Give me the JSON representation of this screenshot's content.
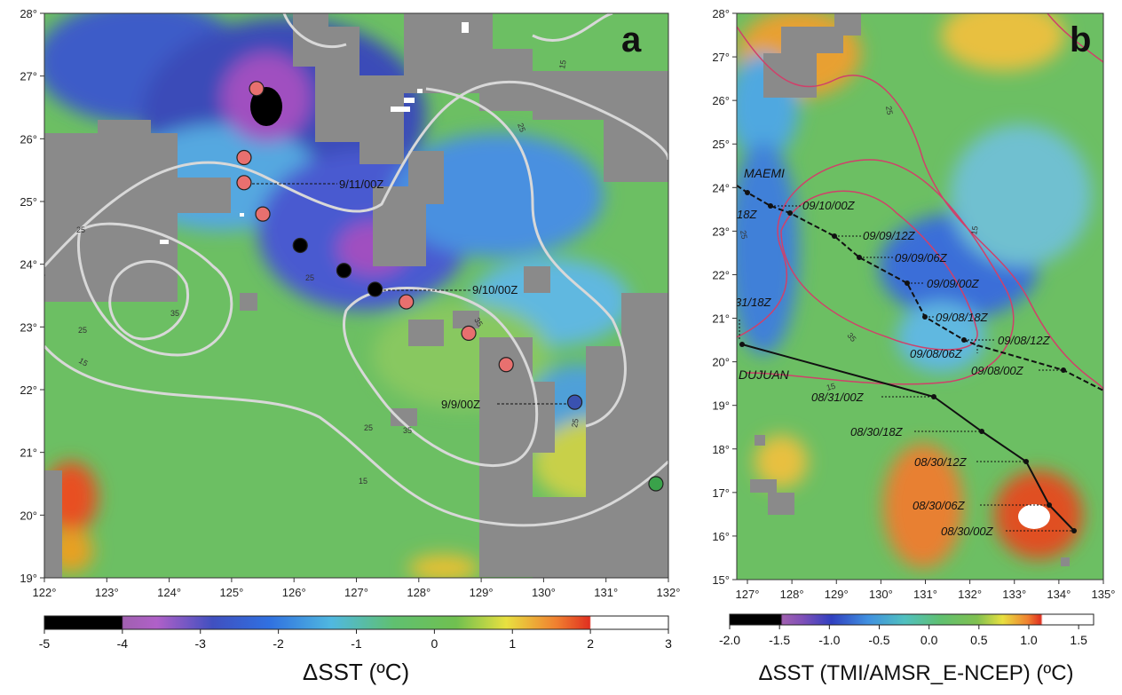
{
  "panel_a": {
    "letter": "a",
    "lat_labels": [
      "28°",
      "27°",
      "26°",
      "25°",
      "24°",
      "23°",
      "22°",
      "21°",
      "20°",
      "19°"
    ],
    "lon_labels": [
      "122°",
      "123°",
      "124°",
      "125°",
      "126°",
      "127°",
      "128°",
      "129°",
      "130°",
      "131°",
      "132°"
    ],
    "contour_labels": [
      "15",
      "25",
      "35"
    ],
    "annotations": [
      "9/11/00Z",
      "9/10/00Z",
      "9/9/00Z"
    ],
    "colorbar": {
      "ticks": [
        "-5",
        "-4",
        "-3",
        "-2",
        "-1",
        "0",
        "1",
        "2",
        "3"
      ],
      "title": "ΔSST (ºC)"
    },
    "markers": [
      {
        "lon": 125.4,
        "lat": 26.8,
        "color": "#e8706f"
      },
      {
        "lon": 125.2,
        "lat": 25.7,
        "color": "#e8706f"
      },
      {
        "lon": 125.2,
        "lat": 25.3,
        "color": "#e8706f"
      },
      {
        "lon": 125.5,
        "lat": 24.8,
        "color": "#e8706f"
      },
      {
        "lon": 126.1,
        "lat": 24.3,
        "color": "#000000"
      },
      {
        "lon": 126.8,
        "lat": 23.9,
        "color": "#000000"
      },
      {
        "lon": 127.3,
        "lat": 23.6,
        "color": "#000000"
      },
      {
        "lon": 127.8,
        "lat": 23.4,
        "color": "#e8706f"
      },
      {
        "lon": 128.8,
        "lat": 22.9,
        "color": "#e8706f"
      },
      {
        "lon": 129.4,
        "lat": 22.4,
        "color": "#e8706f"
      },
      {
        "lon": 130.5,
        "lat": 21.8,
        "color": "#3a52b0"
      },
      {
        "lon": 131.8,
        "lat": 20.5,
        "color": "#3aa24a"
      }
    ]
  },
  "panel_b": {
    "letter": "b",
    "lat_labels": [
      "28°",
      "27°",
      "26°",
      "25°",
      "24°",
      "23°",
      "22°",
      "21°",
      "20°",
      "19°",
      "18°",
      "17°",
      "16°",
      "15°"
    ],
    "lon_labels": [
      "127°",
      "128°",
      "129°",
      "130°",
      "131°",
      "132°",
      "133°",
      "134°",
      "135°"
    ],
    "contour_labels": [
      "15",
      "25",
      "35"
    ],
    "storms": [
      "MAEMI",
      "DUJUAN"
    ],
    "maemi_labels": [
      "09/10/00Z",
      "18Z",
      "09/09/12Z",
      "09/09/06Z",
      "09/09/00Z",
      "09/08/18Z",
      "09/08/12Z",
      "09/08/06Z",
      "09/08/00Z"
    ],
    "dujuan_labels": [
      "31/18Z",
      "08/31/00Z",
      "08/30/18Z",
      "08/30/12Z",
      "08/30/06Z",
      "08/30/00Z"
    ],
    "colorbar": {
      "ticks": [
        "-2.0",
        "-1.5",
        "-1.0",
        "-0.5",
        "0.0",
        "0.5",
        "1.0",
        "1.5"
      ],
      "title": "ΔSST (TMI/AMSR_E-NCEP)  (ºC)"
    }
  },
  "colors": {
    "land_gray": "#8a8a8a",
    "field_green": "#6cbf63",
    "contour_a": "#d8d8d8",
    "contour_b": "#d0406a"
  }
}
